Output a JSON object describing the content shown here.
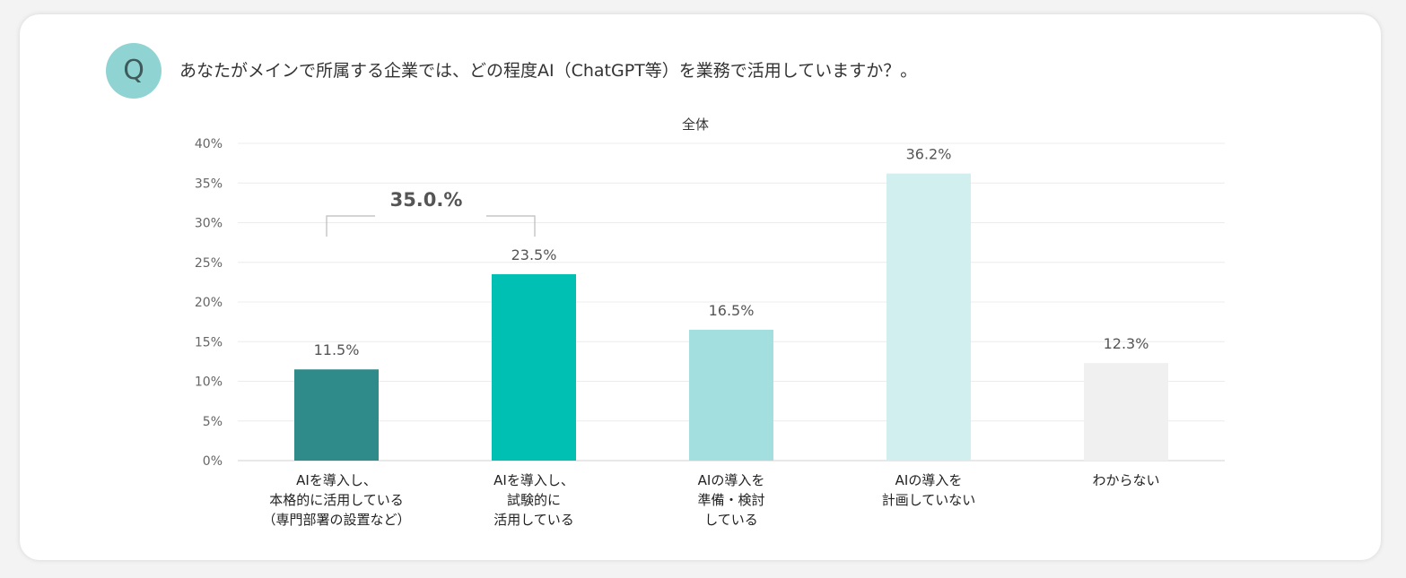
{
  "question": {
    "badge": "Q",
    "text": "あなたがメインで所属する企業では、どの程度AI（ChatGPT等）を業務で活用していますか？。"
  },
  "chart_data": {
    "type": "bar",
    "title": "全体",
    "xlabel": "",
    "ylabel": "",
    "ylim": [
      0,
      40
    ],
    "ytick_values": [
      0,
      5,
      10,
      15,
      20,
      25,
      30,
      35,
      40
    ],
    "ytick_labels": [
      "0%",
      "5%",
      "10%",
      "15%",
      "20%",
      "25%",
      "30%",
      "35%",
      "40%"
    ],
    "grid": true,
    "categories": [
      [
        "AIを導入し、",
        "本格的に活用している",
        "（専門部署の設置など）"
      ],
      [
        "AIを導入し、",
        "試験的に",
        "活用している"
      ],
      [
        "AIの導入を",
        "準備・検討",
        "している"
      ],
      [
        "AIの導入を",
        "計画していない"
      ],
      [
        "わからない"
      ]
    ],
    "values": [
      11.5,
      23.5,
      16.5,
      36.2,
      12.3
    ],
    "value_labels": [
      "11.5%",
      "23.5%",
      "16.5%",
      "36.2%",
      "12.3%"
    ],
    "bar_colors": [
      "#2f8b89",
      "#00bfb3",
      "#a3dfdf",
      "#d2efef",
      "#f0f0f0"
    ],
    "bracket": {
      "from_index": 0,
      "to_index": 1,
      "label": "35.0.%"
    }
  }
}
